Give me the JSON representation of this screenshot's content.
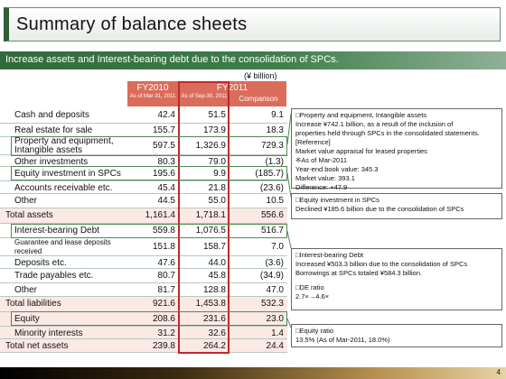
{
  "title": "Summary of balance sheets",
  "subtitle": "Increase assets and Interest-bearing debt due to the consolidation of SPCs.",
  "unit": "(¥ billion)",
  "columns": {
    "fy2010": "FY2010",
    "fy2010_date": "As of Mar-31, 2011",
    "fy2011": "FY2011",
    "fy2011_date": "As of Sep-30, 2011",
    "comparison": "Comparison"
  },
  "rows": [
    {
      "label": "Cash and deposits",
      "fy2010": "42.4",
      "fy2011": "51.5",
      "comparison": "9.1"
    },
    {
      "label": "Real estate for sale",
      "fy2010": "155.7",
      "fy2011": "173.9",
      "comparison": "18.3"
    },
    {
      "label": "Property and equipment, Intangible assets",
      "fy2010": "597.5",
      "fy2011": "1,326.9",
      "comparison": "729.3"
    },
    {
      "label": "Other investments",
      "fy2010": "80.3",
      "fy2011": "79.0",
      "comparison": "(1.3)"
    },
    {
      "label": "Equity investment in SPCs",
      "fy2010": "195.6",
      "fy2011": "9.9",
      "comparison": "(185.7)"
    },
    {
      "label": "Accounts receivable etc.",
      "fy2010": "45.4",
      "fy2011": "21.8",
      "comparison": "(23.6)"
    },
    {
      "label": "Other",
      "fy2010": "44.5",
      "fy2011": "55.0",
      "comparison": "10.5"
    },
    {
      "label": "Total assets",
      "fy2010": "1,161.4",
      "fy2011": "1,718.1",
      "comparison": "556.6"
    },
    {
      "label": "Interest-bearing Debt",
      "fy2010": "559.8",
      "fy2011": "1,076.5",
      "comparison": "516.7"
    },
    {
      "label": "Guarantee and lease deposits received",
      "fy2010": "151.8",
      "fy2011": "158.7",
      "comparison": "7.0"
    },
    {
      "label": "Deposits etc.",
      "fy2010": "47.6",
      "fy2011": "44.0",
      "comparison": "(3.6)"
    },
    {
      "label": "Trade payables etc.",
      "fy2010": "80.7",
      "fy2011": "45.8",
      "comparison": "(34.9)"
    },
    {
      "label": "Other",
      "fy2010": "81.7",
      "fy2011": "128.8",
      "comparison": "47.0"
    },
    {
      "label": "Total liabilities",
      "fy2010": "921.6",
      "fy2011": "1,453.8",
      "comparison": "532.3"
    },
    {
      "label": "Equity",
      "fy2010": "208.6",
      "fy2011": "231.6",
      "comparison": "23.0"
    },
    {
      "label": "Minority interests",
      "fy2010": "31.2",
      "fy2011": "32.6",
      "comparison": "1.4"
    },
    {
      "label": "Total net assets",
      "fy2010": "239.8",
      "fy2011": "264.2",
      "comparison": "24.4"
    }
  ],
  "notes": {
    "property": [
      "□Property and equipment, Intangible assets",
      "Increase ¥742.1 billion, as a result of the inclusion of",
      "properties held through SPCs in the consolidated statements.",
      "[Reference]",
      "Market value appraisal for leased properties",
      "※As of Mar-2011",
      "Year-end book value: 345.3",
      "Market value: 393.1",
      "Difference: +47.9"
    ],
    "equity_investment": [
      "□Equity investment in SPCs",
      "Declined ¥185.6 billion due to the consolidation of SPCs"
    ],
    "debt": [
      "□Interest-bearing Debt",
      "Increased ¥503.3 billion due to the consolidation of SPCs",
      "Borrowings at SPCs totaled ¥584.3 billion.",
      "",
      "□DE ratio",
      "2.7×→4.6×"
    ],
    "equity_ratio": [
      "□Equity ratio",
      "13.5% (As of Mar-2011, 18.0%)"
    ]
  },
  "page_number": "4"
}
